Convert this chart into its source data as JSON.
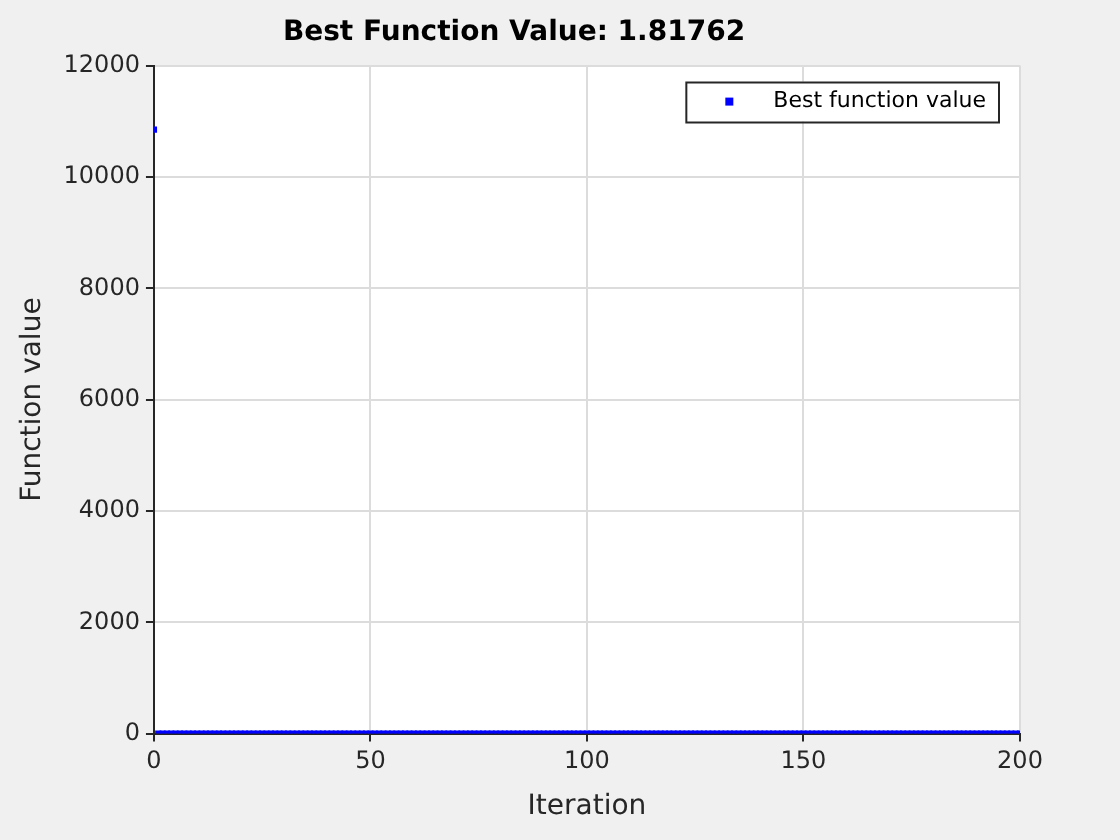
{
  "chart_data": {
    "type": "scatter",
    "title": "Best Function Value: 1.81762",
    "xlabel": "Iteration",
    "ylabel": "Function value",
    "x": [
      0,
      1,
      2,
      3,
      4,
      5,
      6,
      7,
      8,
      9,
      10,
      11,
      12,
      13,
      14,
      15,
      16,
      17,
      18,
      19,
      20,
      21,
      22,
      23,
      24,
      25,
      26,
      27,
      28,
      29,
      30,
      31,
      32,
      33,
      34,
      35,
      36,
      37,
      38,
      39,
      40,
      41,
      42,
      43,
      44,
      45,
      46,
      47,
      48,
      49,
      50,
      51,
      52,
      53,
      54,
      55,
      56,
      57,
      58,
      59,
      60,
      61,
      62,
      63,
      64,
      65,
      66,
      67,
      68,
      69,
      70,
      71,
      72,
      73,
      74,
      75,
      76,
      77,
      78,
      79,
      80,
      81,
      82,
      83,
      84,
      85,
      86,
      87,
      88,
      89,
      90,
      91,
      92,
      93,
      94,
      95,
      96,
      97,
      98,
      99,
      100,
      101,
      102,
      103,
      104,
      105,
      106,
      107,
      108,
      109,
      110,
      111,
      112,
      113,
      114,
      115,
      116,
      117,
      118,
      119,
      120,
      121,
      122,
      123,
      124,
      125,
      126,
      127,
      128,
      129,
      130,
      131,
      132,
      133,
      134,
      135,
      136,
      137,
      138,
      139,
      140,
      141,
      142,
      143,
      144,
      145,
      146,
      147,
      148,
      149,
      150,
      151,
      152,
      153,
      154,
      155,
      156,
      157,
      158,
      159,
      160,
      161,
      162,
      163,
      164,
      165,
      166,
      167,
      168,
      169,
      170,
      171,
      172,
      173,
      174,
      175,
      176,
      177,
      178,
      179,
      180,
      181,
      182,
      183,
      184,
      185,
      186,
      187,
      188,
      189,
      190,
      191,
      192,
      193,
      194,
      195,
      196,
      197,
      198,
      199,
      200
    ],
    "series": [
      {
        "name": "Best function value",
        "color": "#0000ff",
        "values": [
          10850,
          0,
          0,
          0,
          0,
          0,
          0,
          0,
          0,
          0,
          0,
          0,
          0,
          0,
          0,
          0,
          0,
          0,
          0,
          0,
          0,
          0,
          0,
          0,
          0,
          0,
          0,
          0,
          0,
          0,
          0,
          0,
          0,
          0,
          0,
          0,
          0,
          0,
          0,
          0,
          0,
          0,
          0,
          0,
          0,
          0,
          0,
          0,
          0,
          0,
          0,
          0,
          0,
          0,
          0,
          0,
          0,
          0,
          0,
          0,
          0,
          0,
          0,
          0,
          0,
          0,
          0,
          0,
          0,
          0,
          0,
          0,
          0,
          0,
          0,
          0,
          0,
          0,
          0,
          0,
          0,
          0,
          0,
          0,
          0,
          0,
          0,
          0,
          0,
          0,
          0,
          0,
          0,
          0,
          0,
          0,
          0,
          0,
          0,
          0,
          0,
          0,
          0,
          0,
          0,
          0,
          0,
          0,
          0,
          0,
          0,
          0,
          0,
          0,
          0,
          0,
          0,
          0,
          0,
          0,
          0,
          0,
          0,
          0,
          0,
          0,
          0,
          0,
          0,
          0,
          0,
          0,
          0,
          0,
          0,
          0,
          0,
          0,
          0,
          0,
          0,
          0,
          0,
          0,
          0,
          0,
          0,
          0,
          0,
          0,
          0,
          0,
          0,
          0,
          0,
          0,
          0,
          0,
          0,
          0,
          0,
          0,
          0,
          0,
          0,
          0,
          0,
          0,
          0,
          0,
          0,
          0,
          0,
          0,
          0,
          0,
          0,
          0,
          0,
          0,
          0,
          0,
          0,
          0,
          0,
          0,
          0,
          0,
          0,
          0,
          0,
          0,
          0,
          0,
          0,
          0,
          0,
          0,
          0,
          0,
          0
        ]
      }
    ],
    "xlim": [
      0,
      200
    ],
    "xticks": [
      0,
      50,
      100,
      150,
      200
    ],
    "ylim": [
      0,
      12000
    ],
    "yticks": [
      0,
      2000,
      4000,
      6000,
      8000,
      10000,
      12000
    ],
    "grid": true,
    "legend": "top right",
    "marker": "square"
  }
}
